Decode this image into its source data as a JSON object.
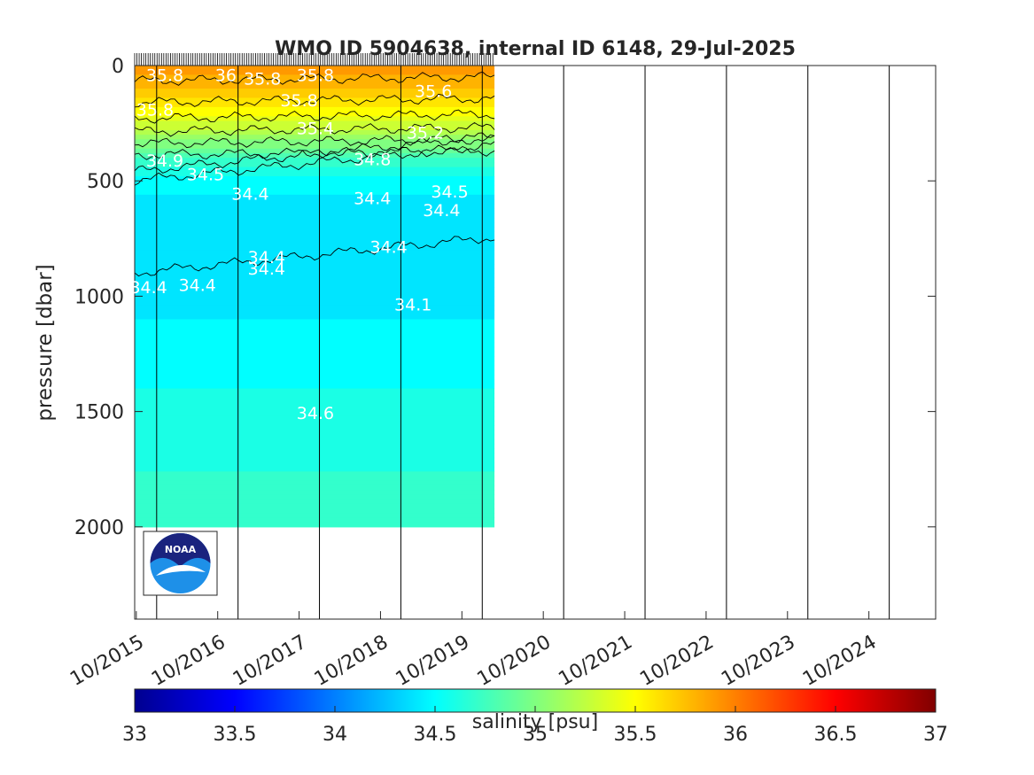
{
  "chart_data": {
    "type": "heatmap",
    "title": "WMO ID 5904638, internal ID 6148, 29-Jul-2025",
    "ylabel": "pressure [dbar]",
    "colorbar_label": "salinity [psu]",
    "colorbar_ticks": [
      "33",
      "33.5",
      "34",
      "34.5",
      "35",
      "35.5",
      "36",
      "36.5",
      "37"
    ],
    "colorbar_range": [
      33,
      37
    ],
    "colormap": "jet",
    "y_ticks": [
      "0",
      "500",
      "1000",
      "1500",
      "2000"
    ],
    "y_tick_values": [
      0,
      500,
      1000,
      1500,
      2000
    ],
    "ylim": [
      0,
      2400
    ],
    "y_reversed": true,
    "x_ticks": [
      "10/2015",
      "10/2016",
      "10/2017",
      "10/2018",
      "10/2019",
      "10/2020",
      "10/2021",
      "10/2022",
      "10/2023",
      "10/2024"
    ],
    "x_tick_years": [
      2015.75,
      2016.75,
      2017.75,
      2018.75,
      2019.75,
      2020.75,
      2021.75,
      2022.75,
      2023.75,
      2024.75
    ],
    "xlim": [
      2015.73,
      2025.57
    ],
    "year_boundaries": [
      2016.0,
      2017.0,
      2018.0,
      2019.0,
      2020.0,
      2021.0,
      2022.0,
      2023.0,
      2024.0,
      2025.0
    ],
    "data_time_range": [
      2015.73,
      2020.15
    ],
    "max_pressure": 1990,
    "salinity_profile": [
      {
        "pressure": 0,
        "salinity": 35.9
      },
      {
        "pressure": 100,
        "salinity": 35.75
      },
      {
        "pressure": 200,
        "salinity": 35.5
      },
      {
        "pressure": 300,
        "salinity": 35.15
      },
      {
        "pressure": 400,
        "salinity": 34.75
      },
      {
        "pressure": 500,
        "salinity": 34.5
      },
      {
        "pressure": 600,
        "salinity": 34.4
      },
      {
        "pressure": 800,
        "salinity": 34.38
      },
      {
        "pressure": 1000,
        "salinity": 34.42
      },
      {
        "pressure": 1200,
        "salinity": 34.48
      },
      {
        "pressure": 1400,
        "salinity": 34.55
      },
      {
        "pressure": 1600,
        "salinity": 34.63
      },
      {
        "pressure": 2000,
        "salinity": 34.68
      }
    ],
    "contour_labels": [
      {
        "text": "35.8",
        "year": 2016.1,
        "pressure": 40
      },
      {
        "text": "36",
        "year": 2016.85,
        "pressure": 40
      },
      {
        "text": "35.8",
        "year": 2017.3,
        "pressure": 55
      },
      {
        "text": "35.8",
        "year": 2017.95,
        "pressure": 40
      },
      {
        "text": "35.8",
        "year": 2017.75,
        "pressure": 150
      },
      {
        "text": "35.6",
        "year": 2019.4,
        "pressure": 110
      },
      {
        "text": "35.8",
        "year": 2015.98,
        "pressure": 190
      },
      {
        "text": "35.4",
        "year": 2017.95,
        "pressure": 270
      },
      {
        "text": "35.2",
        "year": 2019.3,
        "pressure": 290
      },
      {
        "text": "34.9",
        "year": 2016.1,
        "pressure": 410
      },
      {
        "text": "34.8",
        "year": 2018.65,
        "pressure": 405
      },
      {
        "text": "34.5",
        "year": 2016.6,
        "pressure": 470
      },
      {
        "text": "34.4",
        "year": 2017.15,
        "pressure": 555
      },
      {
        "text": "34.4",
        "year": 2018.65,
        "pressure": 575
      },
      {
        "text": "34.5",
        "year": 2019.6,
        "pressure": 545
      },
      {
        "text": "34.4",
        "year": 2019.5,
        "pressure": 625
      },
      {
        "text": "34.4",
        "year": 2018.85,
        "pressure": 785
      },
      {
        "text": "34.4",
        "year": 2017.35,
        "pressure": 830
      },
      {
        "text": "34.4",
        "year": 2017.35,
        "pressure": 880
      },
      {
        "text": "34.4",
        "year": 2015.9,
        "pressure": 960
      },
      {
        "text": "34.4",
        "year": 2016.5,
        "pressure": 950
      },
      {
        "text": "34.1",
        "year": 2019.15,
        "pressure": 1035
      },
      {
        "text": "34.6",
        "year": 2017.95,
        "pressure": 1505
      }
    ],
    "logo": "noaa-logo"
  }
}
